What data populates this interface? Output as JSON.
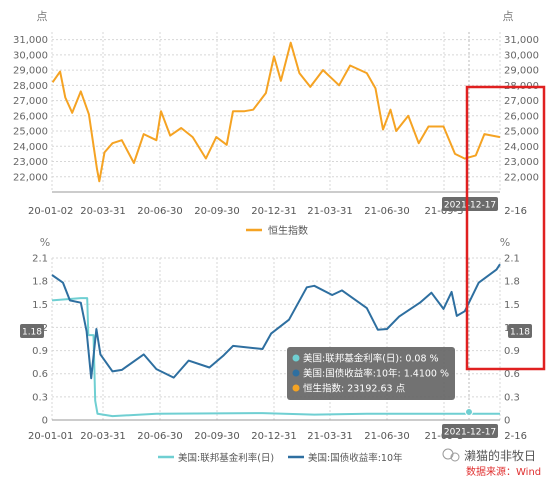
{
  "charts": [
    {
      "unit": "点",
      "ylim": [
        21000,
        31500
      ],
      "yticks": [
        22000,
        23000,
        24000,
        25000,
        26000,
        27000,
        28000,
        29000,
        30000,
        31000
      ],
      "ytick_labels": [
        "22,000",
        "23,000",
        "24,000",
        "25,000",
        "26,000",
        "27,000",
        "28,000",
        "29,000",
        "30,000",
        "31,000"
      ],
      "xticks": [
        "20-01-02",
        "20-03-31",
        "20-06-30",
        "20-09-30",
        "20-12-31",
        "21-03-31",
        "21-06-30",
        "21-09-3",
        "2-16"
      ],
      "crosshair_label": "2021-12-17",
      "legend": [
        {
          "name": "恒生指数",
          "color": "#f5a323"
        }
      ]
    },
    {
      "unit": "%",
      "ylim": [
        0,
        2.1
      ],
      "yticks": [
        0,
        0.3,
        0.6,
        0.9,
        1.2,
        1.5,
        1.8,
        2.1
      ],
      "ytick_labels": [
        "0",
        "0.3",
        "0.6",
        "0.9",
        "1.2",
        "1.5",
        "1.8",
        "2.1"
      ],
      "xticks": [
        "20-01-01",
        "20-03-31",
        "20-06-30",
        "20-09-30",
        "20-12-31",
        "21-03-31",
        "21-06-30",
        "21-09-3",
        "2-16"
      ],
      "crosshair_label": "2021-12-17",
      "marker_value_label": "1.18",
      "legend": [
        {
          "name": "美国:联邦基金利率(日)",
          "color": "#6fcfd2"
        },
        {
          "name": "美国:国债收益率:10年",
          "color": "#2e6fa0"
        }
      ]
    }
  ],
  "chart_data": [
    {
      "type": "line",
      "ylabel": "点",
      "ylim": [
        21000,
        31500
      ],
      "series": [
        {
          "name": "恒生指数",
          "color": "#f5a323",
          "x": [
            "2020-01-02",
            "2020-01-15",
            "2020-01-24",
            "2020-02-05",
            "2020-02-20",
            "2020-03-05",
            "2020-03-19",
            "2020-03-23",
            "2020-04-01",
            "2020-04-15",
            "2020-05-01",
            "2020-05-22",
            "2020-06-08",
            "2020-06-30",
            "2020-07-08",
            "2020-07-24",
            "2020-08-12",
            "2020-09-01",
            "2020-09-24",
            "2020-10-12",
            "2020-10-30",
            "2020-11-10",
            "2020-11-30",
            "2020-12-15",
            "2021-01-06",
            "2021-01-20",
            "2021-02-01",
            "2021-02-18",
            "2021-03-05",
            "2021-03-24",
            "2021-04-15",
            "2021-05-13",
            "2021-06-01",
            "2021-06-30",
            "2021-07-15",
            "2021-07-28",
            "2021-08-10",
            "2021-08-20",
            "2021-09-10",
            "2021-09-28",
            "2021-10-15",
            "2021-11-10",
            "2021-11-30",
            "2021-12-17",
            "2022-01-05",
            "2022-01-20",
            "2022-02-16"
          ],
          "y": [
            28200,
            28900,
            27200,
            26200,
            27600,
            26100,
            22500,
            21700,
            23600,
            24200,
            24400,
            22900,
            24800,
            24400,
            26300,
            24700,
            25200,
            24600,
            23200,
            24600,
            24100,
            26300,
            26300,
            26400,
            27500,
            29900,
            28300,
            30800,
            28800,
            27900,
            29000,
            28000,
            29300,
            28800,
            27800,
            25100,
            26400,
            25000,
            26000,
            24200,
            25300,
            25300,
            23500,
            23192,
            23400,
            24800,
            24600
          ]
        }
      ]
    },
    {
      "type": "line",
      "ylabel": "%",
      "ylim": [
        0,
        2.1
      ],
      "series": [
        {
          "name": "美国:联邦基金利率(日)",
          "color": "#6fcfd2",
          "x": [
            "2020-01-01",
            "2020-02-20",
            "2020-03-02",
            "2020-03-04",
            "2020-03-13",
            "2020-03-16",
            "2020-03-20",
            "2020-04-15",
            "2020-06-30",
            "2020-12-31",
            "2021-03-31",
            "2021-06-30",
            "2021-09-30",
            "2021-12-17",
            "2022-02-16"
          ],
          "y": [
            1.55,
            1.58,
            1.58,
            1.1,
            1.1,
            0.25,
            0.08,
            0.05,
            0.08,
            0.09,
            0.07,
            0.08,
            0.08,
            0.08,
            0.08
          ]
        },
        {
          "name": "美国:国债收益率:10年",
          "color": "#2e6fa0",
          "x": [
            "2020-01-01",
            "2020-01-20",
            "2020-02-01",
            "2020-02-20",
            "2020-03-01",
            "2020-03-09",
            "2020-03-18",
            "2020-03-25",
            "2020-04-15",
            "2020-05-01",
            "2020-06-08",
            "2020-06-30",
            "2020-07-30",
            "2020-08-25",
            "2020-09-30",
            "2020-10-25",
            "2020-11-10",
            "2020-12-31",
            "2021-01-15",
            "2021-02-15",
            "2021-03-18",
            "2021-03-31",
            "2021-05-01",
            "2021-05-18",
            "2021-06-30",
            "2021-07-19",
            "2021-08-04",
            "2021-08-25",
            "2021-09-30",
            "2021-10-20",
            "2021-11-10",
            "2021-11-24",
            "2021-12-03",
            "2021-12-17",
            "2022-01-10",
            "2022-02-10",
            "2022-02-16"
          ],
          "y": [
            1.88,
            1.78,
            1.55,
            1.52,
            1.15,
            0.54,
            1.18,
            0.85,
            0.63,
            0.65,
            0.85,
            0.66,
            0.55,
            0.77,
            0.68,
            0.84,
            0.96,
            0.92,
            1.12,
            1.3,
            1.72,
            1.74,
            1.62,
            1.68,
            1.45,
            1.17,
            1.18,
            1.34,
            1.52,
            1.65,
            1.44,
            1.66,
            1.35,
            1.41,
            1.78,
            1.95,
            2.02
          ]
        }
      ]
    }
  ],
  "tooltip": {
    "rows": [
      {
        "label": "美国:联邦基金利率(日): 0.08 %",
        "color": "#6fcfd2"
      },
      {
        "label": "美国:国债收益率:10年: 1.4100 %",
        "color": "#2e6fa0"
      },
      {
        "label": "恒生指数: 23192.63 点",
        "color": "#f5a323"
      }
    ]
  },
  "watermark": {
    "author": "濑猫的非牧日",
    "source": "数据来源：Wind"
  }
}
